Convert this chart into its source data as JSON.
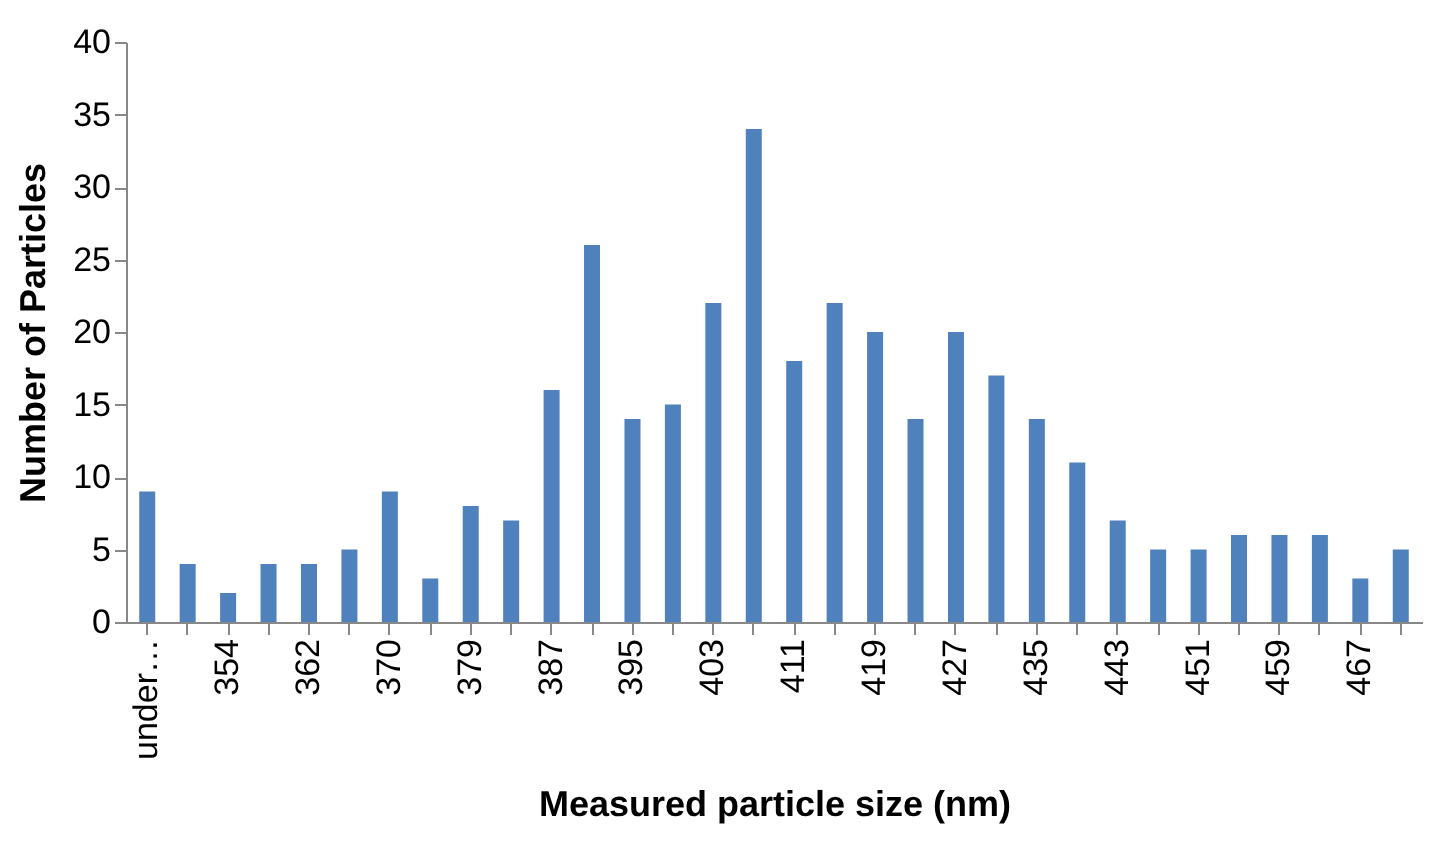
{
  "chart_data": {
    "type": "bar",
    "xlabel": "Measured particle size (nm)",
    "ylabel": "Number of Particles",
    "categories": [
      "under…",
      null,
      "354",
      null,
      "362",
      null,
      "370",
      null,
      "379",
      null,
      "387",
      null,
      "395",
      null,
      "403",
      null,
      "411",
      null,
      "419",
      null,
      "427",
      null,
      "435",
      null,
      "443",
      null,
      "451",
      null,
      "459",
      null,
      "467",
      null
    ],
    "values": [
      9,
      4,
      2,
      4,
      4,
      5,
      9,
      3,
      8,
      7,
      16,
      26,
      14,
      15,
      22,
      34,
      18,
      22,
      20,
      14,
      20,
      17,
      14,
      11,
      7,
      5,
      5,
      6,
      6,
      6,
      3,
      5
    ],
    "color": "#4f81bd",
    "ylim": [
      0,
      40
    ],
    "yticks": [
      0,
      5,
      10,
      15,
      20,
      25,
      30,
      35,
      40
    ],
    "grid": false
  }
}
